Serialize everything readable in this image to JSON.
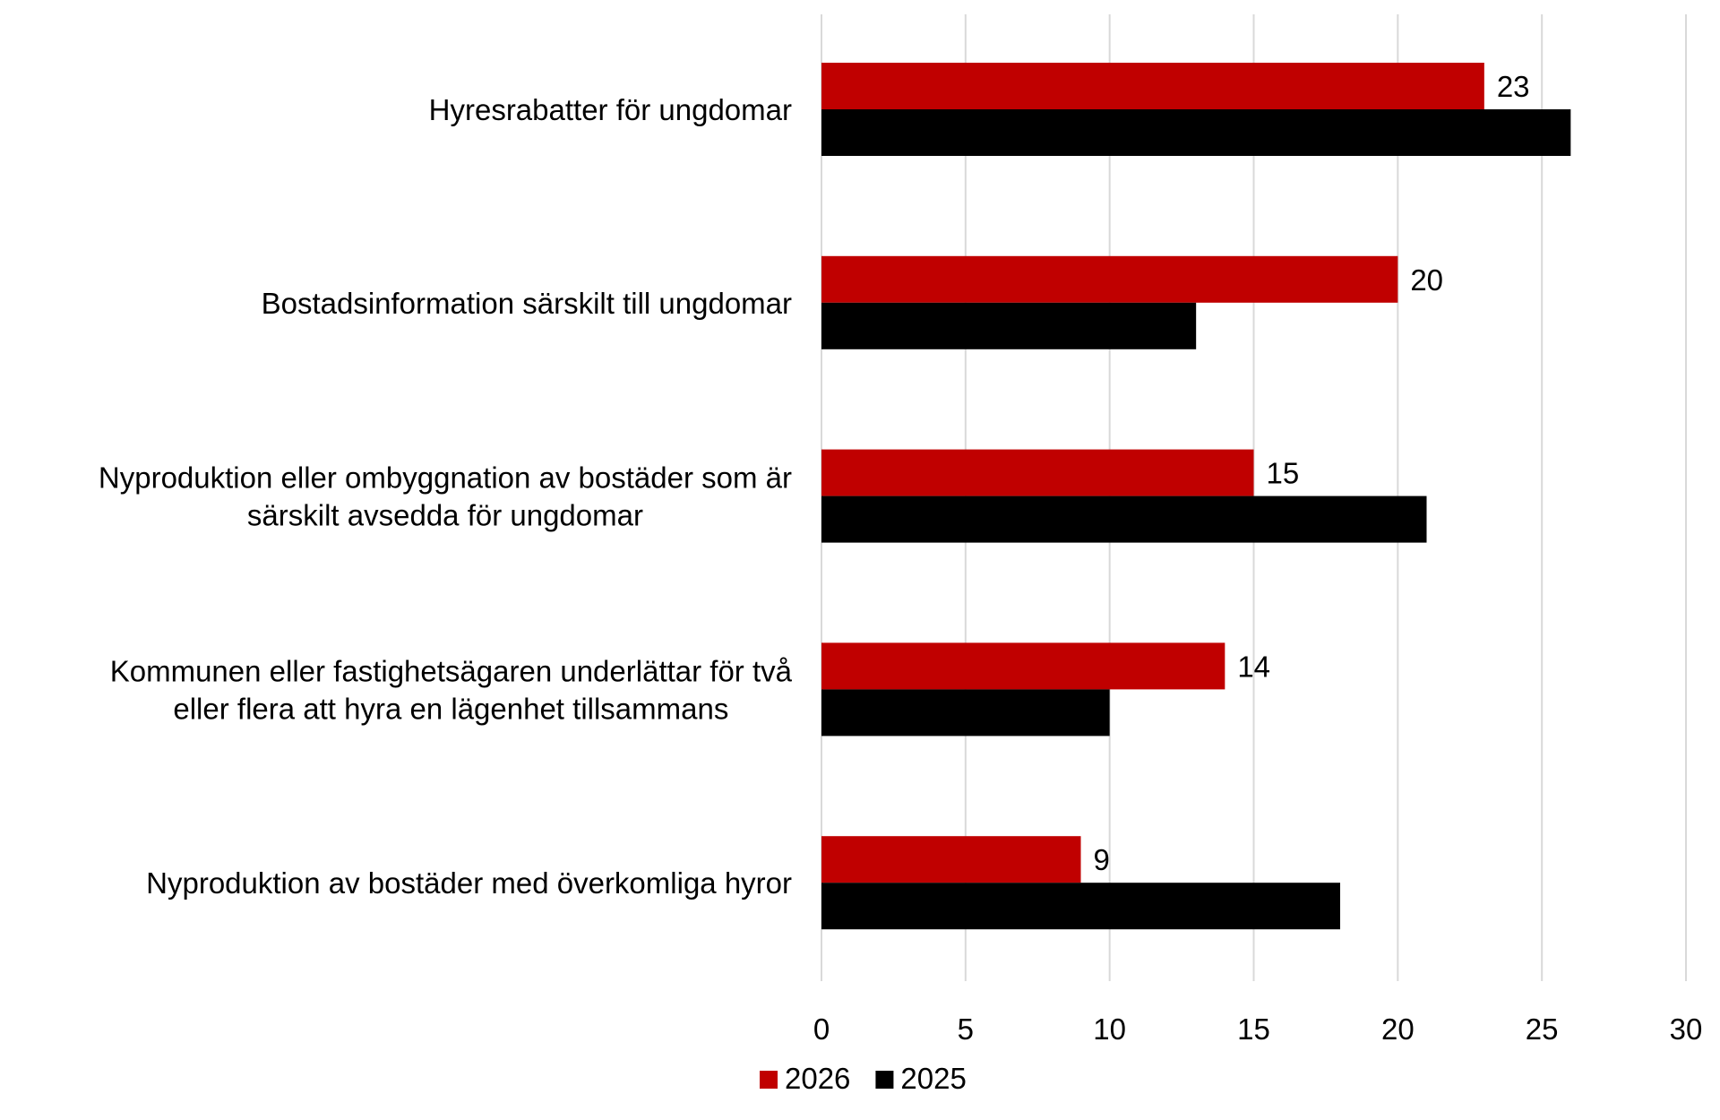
{
  "chart_data": {
    "type": "bar",
    "orientation": "horizontal",
    "categories": [
      [
        "Hyresrabatter för ungdomar"
      ],
      [
        "Bostadsinformation särskilt till ungdomar"
      ],
      [
        "Nyproduktion eller ombyggnation av bostäder som är",
        "särskilt avsedda för ungdomar"
      ],
      [
        "Kommunen eller fastighetsägaren underlättar för två",
        "eller flera att hyra en lägenhet tillsammans"
      ],
      [
        "Nyproduktion av bostäder med överkomliga hyror"
      ]
    ],
    "series": [
      {
        "name": "2026",
        "color": "#c00000",
        "values": [
          23,
          20,
          15,
          14,
          9
        ],
        "show_labels": true
      },
      {
        "name": "2025",
        "color": "#000000",
        "values": [
          26,
          13,
          21,
          10,
          18
        ],
        "show_labels": false
      }
    ],
    "xlim": [
      0,
      30
    ],
    "xticks": [
      0,
      5,
      10,
      15,
      20,
      25,
      30
    ],
    "grid": "vertical",
    "legend": "bottom"
  }
}
